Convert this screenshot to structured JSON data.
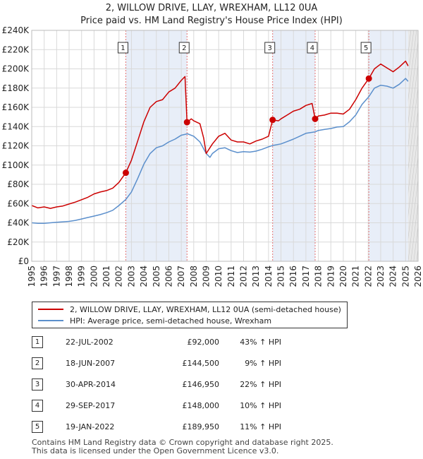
{
  "title": "2, WILLOW DRIVE, LLAY, WREXHAM, LL12 0UA",
  "subtitle": "Price paid vs. HM Land Registry's House Price Index (HPI)",
  "colors": {
    "property": "#cc0000",
    "hpi": "#5b8fcc",
    "shade": "#e8eef8",
    "sale_line": "#e57373",
    "future": "#e8e8e8"
  },
  "chart_data": {
    "type": "line",
    "title": "2, WILLOW DRIVE, LLAY, WREXHAM, LL12 0UA",
    "subtitle": "Price paid vs. HM Land Registry's House Price Index (HPI)",
    "xlim": [
      1995,
      2026
    ],
    "ylim": [
      0,
      240000
    ],
    "x_ticks": [
      "1995",
      "1996",
      "1997",
      "1998",
      "1999",
      "2000",
      "2001",
      "2002",
      "2003",
      "2004",
      "2005",
      "2006",
      "2007",
      "2008",
      "2009",
      "2010",
      "2011",
      "2012",
      "2013",
      "2014",
      "2015",
      "2016",
      "2017",
      "2018",
      "2019",
      "2020",
      "2021",
      "2022",
      "2023",
      "2024",
      "2025",
      "2026"
    ],
    "y_ticks": [
      "£0",
      "£20K",
      "£40K",
      "£60K",
      "£80K",
      "£100K",
      "£120K",
      "£140K",
      "£160K",
      "£180K",
      "£200K",
      "£220K",
      "£240K"
    ],
    "grid": true,
    "legend_position": "below",
    "series": [
      {
        "name": "2, WILLOW DRIVE, LLAY, WREXHAM, LL12 0UA (semi-detached house)",
        "points": [
          [
            1995,
            58000
          ],
          [
            1995.5,
            55500
          ],
          [
            1996,
            56500
          ],
          [
            1996.5,
            55000
          ],
          [
            1997,
            56500
          ],
          [
            1997.5,
            57500
          ],
          [
            1998,
            59500
          ],
          [
            1998.5,
            61500
          ],
          [
            1999,
            64000
          ],
          [
            1999.5,
            66500
          ],
          [
            2000,
            70000
          ],
          [
            2000.5,
            72000
          ],
          [
            2001,
            73500
          ],
          [
            2001.5,
            76000
          ],
          [
            2002,
            82000
          ],
          [
            2002.55,
            92000
          ],
          [
            2003,
            105000
          ],
          [
            2003.5,
            125000
          ],
          [
            2004,
            145000
          ],
          [
            2004.5,
            160000
          ],
          [
            2005,
            166000
          ],
          [
            2005.5,
            168000
          ],
          [
            2006,
            176000
          ],
          [
            2006.5,
            180000
          ],
          [
            2007,
            188000
          ],
          [
            2007.3,
            192000
          ],
          [
            2007.46,
            144500
          ],
          [
            2007.8,
            148000
          ],
          [
            2008,
            146000
          ],
          [
            2008.5,
            143000
          ],
          [
            2008.8,
            128000
          ],
          [
            2009,
            112000
          ],
          [
            2009.5,
            122000
          ],
          [
            2010,
            130000
          ],
          [
            2010.5,
            133000
          ],
          [
            2011,
            126000
          ],
          [
            2011.5,
            124000
          ],
          [
            2012,
            124000
          ],
          [
            2012.5,
            122000
          ],
          [
            2013,
            125000
          ],
          [
            2013.5,
            127000
          ],
          [
            2014,
            130000
          ],
          [
            2014.33,
            146950
          ],
          [
            2014.8,
            146000
          ],
          [
            2015,
            148000
          ],
          [
            2015.5,
            152000
          ],
          [
            2016,
            156000
          ],
          [
            2016.5,
            158000
          ],
          [
            2017,
            162000
          ],
          [
            2017.5,
            164000
          ],
          [
            2017.74,
            148000
          ],
          [
            2018,
            151000
          ],
          [
            2018.5,
            152000
          ],
          [
            2019,
            154000
          ],
          [
            2019.5,
            154000
          ],
          [
            2020,
            153000
          ],
          [
            2020.5,
            158000
          ],
          [
            2021,
            168000
          ],
          [
            2021.5,
            180000
          ],
          [
            2022.05,
            189950
          ],
          [
            2022.5,
            200000
          ],
          [
            2023,
            205000
          ],
          [
            2023.5,
            201000
          ],
          [
            2024,
            197000
          ],
          [
            2024.5,
            202000
          ],
          [
            2025,
            208000
          ],
          [
            2025.2,
            203000
          ]
        ]
      },
      {
        "name": "HPI: Average price, semi-detached house, Wrexham",
        "points": [
          [
            1995,
            40000
          ],
          [
            1995.5,
            39500
          ],
          [
            1996,
            39500
          ],
          [
            1996.5,
            40000
          ],
          [
            1997,
            40500
          ],
          [
            1997.5,
            41000
          ],
          [
            1998,
            41500
          ],
          [
            1998.5,
            42500
          ],
          [
            1999,
            44000
          ],
          [
            1999.5,
            45500
          ],
          [
            2000,
            47000
          ],
          [
            2000.5,
            48500
          ],
          [
            2001,
            50500
          ],
          [
            2001.5,
            53000
          ],
          [
            2002,
            58000
          ],
          [
            2002.55,
            64300
          ],
          [
            2003,
            72000
          ],
          [
            2003.5,
            86000
          ],
          [
            2004,
            101000
          ],
          [
            2004.5,
            112000
          ],
          [
            2005,
            118000
          ],
          [
            2005.5,
            120000
          ],
          [
            2006,
            124000
          ],
          [
            2006.5,
            127000
          ],
          [
            2007,
            131000
          ],
          [
            2007.5,
            132500
          ],
          [
            2008,
            130000
          ],
          [
            2008.5,
            124000
          ],
          [
            2009,
            112000
          ],
          [
            2009.3,
            108000
          ],
          [
            2009.5,
            112000
          ],
          [
            2010,
            117000
          ],
          [
            2010.5,
            118000
          ],
          [
            2011,
            115000
          ],
          [
            2011.5,
            113000
          ],
          [
            2012,
            114000
          ],
          [
            2012.5,
            113500
          ],
          [
            2013,
            114500
          ],
          [
            2013.5,
            116500
          ],
          [
            2014,
            119000
          ],
          [
            2014.33,
            120400
          ],
          [
            2015,
            122000
          ],
          [
            2015.5,
            124500
          ],
          [
            2016,
            127000
          ],
          [
            2016.5,
            130000
          ],
          [
            2017,
            133000
          ],
          [
            2017.74,
            134500
          ],
          [
            2018,
            136000
          ],
          [
            2018.5,
            137000
          ],
          [
            2019,
            138000
          ],
          [
            2019.5,
            139500
          ],
          [
            2020,
            140000
          ],
          [
            2020.5,
            145000
          ],
          [
            2021,
            152000
          ],
          [
            2021.5,
            163000
          ],
          [
            2022.05,
            171100
          ],
          [
            2022.5,
            180000
          ],
          [
            2023,
            183000
          ],
          [
            2023.5,
            182000
          ],
          [
            2024,
            180000
          ],
          [
            2024.5,
            184000
          ],
          [
            2025,
            190000
          ],
          [
            2025.2,
            187000
          ]
        ]
      }
    ],
    "sales": [
      {
        "num": "1",
        "year": 2002.55,
        "date": "22-JUL-2002",
        "price": 92000,
        "price_label": "£92,000",
        "hpi_change": "43% ↑ HPI"
      },
      {
        "num": "2",
        "year": 2007.46,
        "date": "18-JUN-2007",
        "price": 144500,
        "price_label": "£144,500",
        "hpi_change": "9% ↑ HPI"
      },
      {
        "num": "3",
        "year": 2014.33,
        "date": "30-APR-2014",
        "price": 146950,
        "price_label": "£146,950",
        "hpi_change": "22% ↑ HPI"
      },
      {
        "num": "4",
        "year": 2017.74,
        "date": "29-SEP-2017",
        "price": 148000,
        "price_label": "£148,000",
        "hpi_change": "10% ↑ HPI"
      },
      {
        "num": "5",
        "year": 2022.05,
        "date": "19-JAN-2022",
        "price": 189950,
        "price_label": "£189,950",
        "hpi_change": "11% ↑ HPI"
      }
    ],
    "shaded_ranges": [
      [
        2002.55,
        2007.46
      ],
      [
        2014.33,
        2017.74
      ],
      [
        2022.05,
        2025.2
      ]
    ],
    "future_start": 2025.2
  },
  "legend": {
    "property": "2, WILLOW DRIVE, LLAY, WREXHAM, LL12 0UA (semi-detached house)",
    "hpi": "HPI: Average price, semi-detached house, Wrexham"
  },
  "footer": {
    "line1": "Contains HM Land Registry data © Crown copyright and database right 2025.",
    "line2": "This data is licensed under the Open Government Licence v3.0."
  }
}
